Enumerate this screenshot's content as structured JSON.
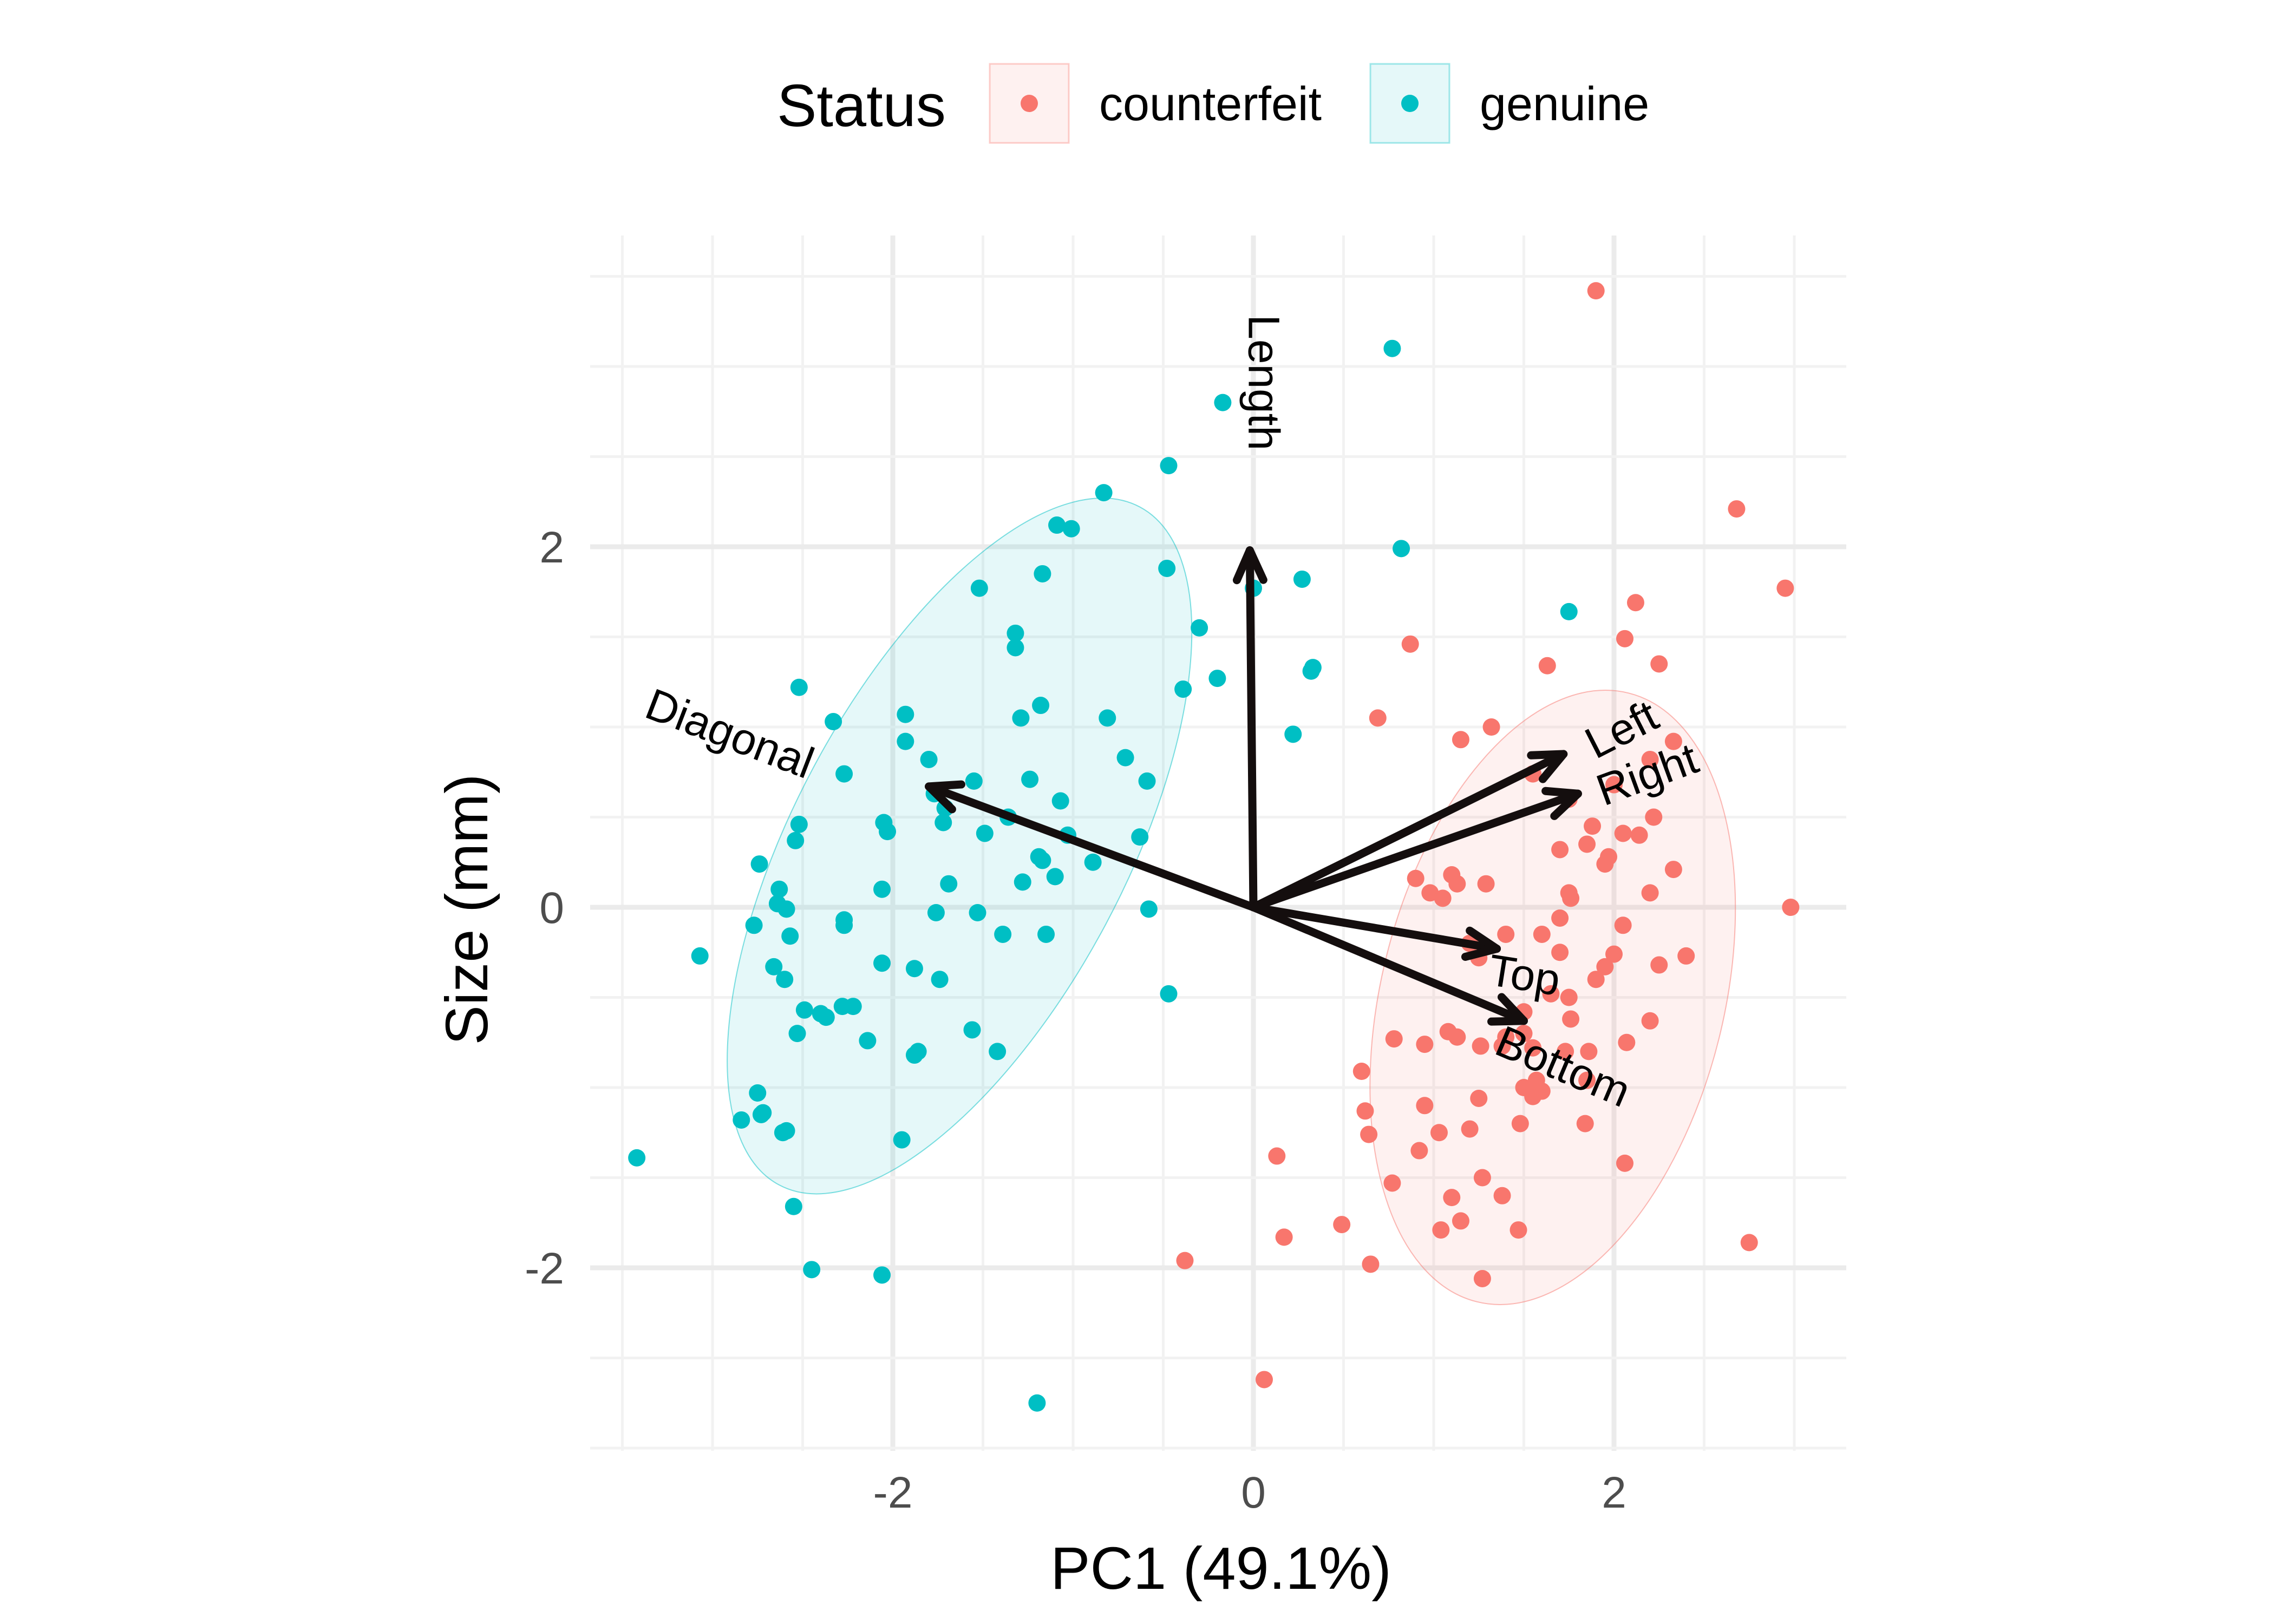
{
  "chart_data": {
    "type": "scatter",
    "title": "",
    "xlabel": "PC1 (49.1%)",
    "ylabel": "Size (mm)",
    "xlim": [
      -3.7,
      3.3
    ],
    "ylim": [
      -3.0,
      3.8
    ],
    "xticks": [
      -2,
      0,
      2
    ],
    "yticks": [
      -2,
      0,
      2
    ],
    "grid": true,
    "legend": {
      "title": "Status",
      "position": "top"
    },
    "series": [
      {
        "name": "counterfeit",
        "color": "#F8766D",
        "points": [
          [
            1.9,
            3.42
          ],
          [
            2.68,
            2.21
          ],
          [
            2.95,
            1.77
          ],
          [
            2.98,
            0.0
          ],
          [
            2.75,
            -1.86
          ],
          [
            2.12,
            1.69
          ],
          [
            2.06,
            1.49
          ],
          [
            2.25,
            1.35
          ],
          [
            1.63,
            1.34
          ],
          [
            0.87,
            1.46
          ],
          [
            0.69,
            1.05
          ],
          [
            1.32,
            1.0
          ],
          [
            1.15,
            0.93
          ],
          [
            2.33,
            0.92
          ],
          [
            2.2,
            0.82
          ],
          [
            2.0,
            0.68
          ],
          [
            1.55,
            0.74
          ],
          [
            1.75,
            0.6
          ],
          [
            2.22,
            0.5
          ],
          [
            1.88,
            0.45
          ],
          [
            2.05,
            0.41
          ],
          [
            2.14,
            0.4
          ],
          [
            1.7,
            0.32
          ],
          [
            1.97,
            0.28
          ],
          [
            1.95,
            0.24
          ],
          [
            1.85,
            0.35
          ],
          [
            2.33,
            0.21
          ],
          [
            1.1,
            0.18
          ],
          [
            0.9,
            0.16
          ],
          [
            1.13,
            0.13
          ],
          [
            1.29,
            0.13
          ],
          [
            0.98,
            0.08
          ],
          [
            1.75,
            0.08
          ],
          [
            1.05,
            0.05
          ],
          [
            1.76,
            0.05
          ],
          [
            2.2,
            0.08
          ],
          [
            1.7,
            -0.06
          ],
          [
            1.4,
            -0.15
          ],
          [
            2.05,
            -0.1
          ],
          [
            1.2,
            -0.2
          ],
          [
            1.25,
            -0.28
          ],
          [
            1.6,
            -0.15
          ],
          [
            1.7,
            -0.25
          ],
          [
            2.0,
            -0.26
          ],
          [
            1.95,
            -0.33
          ],
          [
            2.25,
            -0.32
          ],
          [
            2.4,
            -0.27
          ],
          [
            1.9,
            -0.4
          ],
          [
            1.65,
            -0.48
          ],
          [
            1.75,
            -0.5
          ],
          [
            1.5,
            -0.58
          ],
          [
            1.76,
            -0.62
          ],
          [
            2.2,
            -0.63
          ],
          [
            1.5,
            -0.7
          ],
          [
            1.4,
            -0.72
          ],
          [
            1.55,
            -0.78
          ],
          [
            2.07,
            -0.75
          ],
          [
            0.78,
            -0.73
          ],
          [
            0.95,
            -0.76
          ],
          [
            1.08,
            -0.69
          ],
          [
            1.13,
            -0.72
          ],
          [
            1.26,
            -0.77
          ],
          [
            1.38,
            -0.77
          ],
          [
            1.73,
            -0.8
          ],
          [
            1.86,
            -0.8
          ],
          [
            0.6,
            -0.91
          ],
          [
            1.57,
            -0.96
          ],
          [
            1.5,
            -1.0
          ],
          [
            1.6,
            -1.02
          ],
          [
            1.55,
            -1.05
          ],
          [
            1.85,
            -0.96
          ],
          [
            1.25,
            -1.06
          ],
          [
            0.62,
            -1.13
          ],
          [
            0.95,
            -1.1
          ],
          [
            1.48,
            -1.2
          ],
          [
            1.84,
            -1.2
          ],
          [
            1.2,
            -1.23
          ],
          [
            0.64,
            -1.26
          ],
          [
            1.03,
            -1.25
          ],
          [
            0.92,
            -1.35
          ],
          [
            0.77,
            -1.53
          ],
          [
            1.27,
            -1.5
          ],
          [
            1.38,
            -1.6
          ],
          [
            1.1,
            -1.61
          ],
          [
            1.15,
            -1.74
          ],
          [
            1.04,
            -1.79
          ],
          [
            1.47,
            -1.79
          ],
          [
            2.06,
            -1.42
          ],
          [
            0.13,
            -1.38
          ],
          [
            0.17,
            -1.83
          ],
          [
            0.49,
            -1.76
          ],
          [
            0.65,
            -1.98
          ],
          [
            1.27,
            -2.06
          ],
          [
            -0.38,
            -1.96
          ],
          [
            0.06,
            -2.62
          ]
        ]
      },
      {
        "name": "genuine",
        "color": "#00BFC4",
        "points": [
          [
            0.77,
            3.1
          ],
          [
            -0.17,
            2.8
          ],
          [
            -0.47,
            2.45
          ],
          [
            -0.83,
            2.3
          ],
          [
            -1.09,
            2.12
          ],
          [
            -1.01,
            2.1
          ],
          [
            0.82,
            1.99
          ],
          [
            -0.48,
            1.88
          ],
          [
            -1.17,
            1.85
          ],
          [
            0.27,
            1.82
          ],
          [
            -1.52,
            1.77
          ],
          [
            0.0,
            1.77
          ],
          [
            1.75,
            1.64
          ],
          [
            -0.3,
            1.55
          ],
          [
            -1.32,
            1.52
          ],
          [
            -1.32,
            1.44
          ],
          [
            0.33,
            1.33
          ],
          [
            0.32,
            1.31
          ],
          [
            -0.2,
            1.27
          ],
          [
            -0.39,
            1.21
          ],
          [
            -2.52,
            1.22
          ],
          [
            -1.18,
            1.12
          ],
          [
            -1.93,
            1.07
          ],
          [
            -1.29,
            1.05
          ],
          [
            -0.81,
            1.05
          ],
          [
            -2.33,
            1.03
          ],
          [
            0.22,
            0.96
          ],
          [
            -1.93,
            0.92
          ],
          [
            -1.8,
            0.82
          ],
          [
            -0.71,
            0.83
          ],
          [
            -2.27,
            0.74
          ],
          [
            -1.24,
            0.71
          ],
          [
            -1.55,
            0.7
          ],
          [
            -0.59,
            0.7
          ],
          [
            -1.77,
            0.63
          ],
          [
            -1.07,
            0.59
          ],
          [
            -1.71,
            0.55
          ],
          [
            -1.72,
            0.47
          ],
          [
            -2.05,
            0.47
          ],
          [
            -2.52,
            0.46
          ],
          [
            -1.36,
            0.5
          ],
          [
            -2.03,
            0.42
          ],
          [
            -1.49,
            0.41
          ],
          [
            -1.03,
            0.4
          ],
          [
            -0.63,
            0.39
          ],
          [
            -2.54,
            0.37
          ],
          [
            -1.19,
            0.28
          ],
          [
            -1.17,
            0.26
          ],
          [
            -0.89,
            0.25
          ],
          [
            -2.74,
            0.24
          ],
          [
            -1.1,
            0.17
          ],
          [
            -1.69,
            0.13
          ],
          [
            -2.06,
            0.1
          ],
          [
            -1.28,
            0.14
          ],
          [
            -2.63,
            0.1
          ],
          [
            -2.64,
            0.02
          ],
          [
            -2.59,
            -0.01
          ],
          [
            -0.58,
            -0.01
          ],
          [
            -1.76,
            -0.03
          ],
          [
            -1.53,
            -0.03
          ],
          [
            -2.27,
            -0.07
          ],
          [
            -2.27,
            -0.1
          ],
          [
            -2.77,
            -0.1
          ],
          [
            -2.57,
            -0.16
          ],
          [
            -1.39,
            -0.15
          ],
          [
            -1.15,
            -0.15
          ],
          [
            -3.07,
            -0.27
          ],
          [
            -2.06,
            -0.31
          ],
          [
            -1.88,
            -0.34
          ],
          [
            -2.66,
            -0.33
          ],
          [
            -2.6,
            -0.4
          ],
          [
            -1.74,
            -0.4
          ],
          [
            -2.22,
            -0.55
          ],
          [
            -2.28,
            -0.55
          ],
          [
            -2.49,
            -0.57
          ],
          [
            -2.4,
            -0.59
          ],
          [
            -2.37,
            -0.61
          ],
          [
            -0.47,
            -0.48
          ],
          [
            -1.56,
            -0.68
          ],
          [
            -2.53,
            -0.7
          ],
          [
            -2.14,
            -0.74
          ],
          [
            -1.42,
            -0.8
          ],
          [
            -1.86,
            -0.8
          ],
          [
            -1.88,
            -0.82
          ],
          [
            -2.75,
            -1.03
          ],
          [
            -2.72,
            -1.14
          ],
          [
            -2.73,
            -1.15
          ],
          [
            -2.84,
            -1.18
          ],
          [
            -2.59,
            -1.24
          ],
          [
            -2.61,
            -1.25
          ],
          [
            -1.95,
            -1.29
          ],
          [
            -3.42,
            -1.39
          ],
          [
            -2.55,
            -1.66
          ],
          [
            -2.45,
            -2.01
          ],
          [
            -2.06,
            -2.04
          ],
          [
            -1.2,
            -2.75
          ]
        ]
      }
    ],
    "ellipses": [
      {
        "series": "genuine",
        "color": "#00BFC4",
        "center": [
          -1.63,
          0.34
        ],
        "semi_axes": [
          2.13,
          0.92
        ],
        "rotation_deg": 62
      },
      {
        "series": "counterfeit",
        "color": "#F8766D",
        "center": [
          1.66,
          -0.5
        ],
        "semi_axes": [
          1.74,
          0.95
        ],
        "rotation_deg": 76
      }
    ],
    "loadings": [
      {
        "label": "Length",
        "x": -0.02,
        "y": 1.98,
        "label_rotation": 90
      },
      {
        "label": "Diagonal",
        "x": -1.8,
        "y": 0.67,
        "label_rotation": 21
      },
      {
        "label": "Left",
        "x": 1.72,
        "y": 0.85,
        "label_rotation": -27
      },
      {
        "label": "Right",
        "x": 1.8,
        "y": 0.63,
        "label_rotation": -20
      },
      {
        "label": "Top",
        "x": 1.35,
        "y": -0.23,
        "label_rotation": 9
      },
      {
        "label": "Bottom",
        "x": 1.5,
        "y": -0.63,
        "label_rotation": 23
      }
    ],
    "colors": {
      "arrow": "#140E0E",
      "grid_major": "#EBEBEB",
      "grid_minor": "#F2F2F2",
      "tick_text": "#4D4D4D"
    }
  }
}
